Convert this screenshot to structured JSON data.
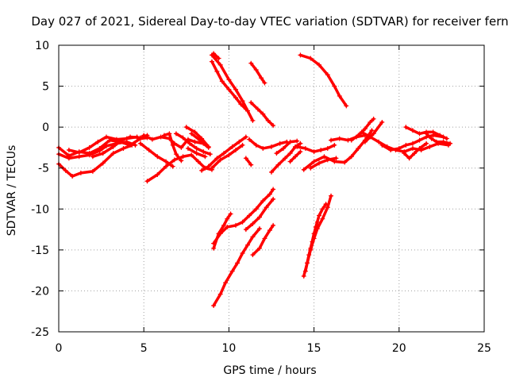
{
  "chart_data": {
    "type": "scatter",
    "title": "Day 027 of 2021, Sidereal Day-to-day VTEC variation (SDTVAR) for receiver fern",
    "xlabel": "GPS time / hours",
    "ylabel": "SDTVAR / TECUs",
    "xlim": [
      0,
      25
    ],
    "ylim": [
      -25,
      10
    ],
    "xticks": [
      0,
      5,
      10,
      15,
      20,
      25
    ],
    "yticks": [
      -25,
      -20,
      -15,
      -10,
      -5,
      0,
      5,
      10
    ],
    "grid": true,
    "marker": "plus",
    "color": "#ff0000",
    "tracks": [
      [
        [
          0.0,
          -2.5
        ],
        [
          0.6,
          -3.5
        ],
        [
          1.2,
          -3.0
        ],
        [
          1.8,
          -3.2
        ],
        [
          2.4,
          -2.6
        ],
        [
          3.0,
          -1.6
        ],
        [
          3.6,
          -1.8
        ],
        [
          4.2,
          -2.2
        ],
        [
          4.8,
          -1.4
        ],
        [
          5.2,
          -1.3
        ]
      ],
      [
        [
          0.0,
          -3.3
        ],
        [
          0.6,
          -3.8
        ],
        [
          1.2,
          -3.6
        ],
        [
          1.8,
          -3.4
        ],
        [
          2.4,
          -2.9
        ],
        [
          2.8,
          -2.3
        ],
        [
          3.4,
          -2.0
        ],
        [
          4.0,
          -1.8
        ],
        [
          4.5,
          -2.2
        ]
      ],
      [
        [
          0.0,
          -4.5
        ],
        [
          0.4,
          -5.3
        ],
        [
          0.8,
          -6.0
        ],
        [
          1.3,
          -5.6
        ],
        [
          2.0,
          -5.4
        ],
        [
          2.6,
          -4.4
        ],
        [
          3.2,
          -3.2
        ],
        [
          3.8,
          -2.6
        ],
        [
          4.3,
          -2.2
        ]
      ],
      [
        [
          2.0,
          -3.6
        ],
        [
          2.6,
          -3.2
        ],
        [
          3.2,
          -2.4
        ],
        [
          3.7,
          -1.6
        ],
        [
          4.2,
          -1.2
        ],
        [
          4.8,
          -1.3
        ],
        [
          5.2,
          -1.0
        ]
      ],
      [
        [
          0.6,
          -2.8
        ],
        [
          1.2,
          -3.1
        ],
        [
          1.8,
          -2.5
        ],
        [
          2.3,
          -1.8
        ],
        [
          2.8,
          -1.2
        ],
        [
          3.4,
          -1.5
        ],
        [
          4.0,
          -1.4
        ],
        [
          4.6,
          -1.2
        ]
      ],
      [
        [
          5.0,
          -1.0
        ],
        [
          5.5,
          -1.5
        ],
        [
          6.0,
          -1.2
        ],
        [
          6.5,
          -1.4
        ],
        [
          6.8,
          -2.0
        ],
        [
          7.2,
          -2.5
        ],
        [
          7.6,
          -1.5
        ],
        [
          8.0,
          -1.8
        ],
        [
          8.5,
          -2.0
        ],
        [
          8.8,
          -2.5
        ]
      ],
      [
        [
          4.8,
          -2.0
        ],
        [
          5.3,
          -2.8
        ],
        [
          5.8,
          -3.6
        ],
        [
          6.3,
          -4.2
        ],
        [
          6.7,
          -4.8
        ]
      ],
      [
        [
          6.2,
          -1.0
        ],
        [
          6.5,
          -0.8
        ],
        [
          6.7,
          -2.2
        ],
        [
          6.9,
          -3.3
        ],
        [
          7.2,
          -4.1
        ]
      ],
      [
        [
          5.2,
          -6.6
        ],
        [
          5.8,
          -5.8
        ],
        [
          6.3,
          -4.8
        ],
        [
          6.8,
          -4.0
        ],
        [
          7.3,
          -3.6
        ],
        [
          7.8,
          -3.4
        ],
        [
          8.2,
          -4.2
        ],
        [
          8.6,
          -5.0
        ],
        [
          9.0,
          -5.2
        ]
      ],
      [
        [
          6.9,
          -0.8
        ],
        [
          7.3,
          -1.3
        ],
        [
          7.7,
          -2.0
        ],
        [
          8.1,
          -2.6
        ],
        [
          8.5,
          -3.0
        ],
        [
          8.9,
          -3.3
        ]
      ],
      [
        [
          7.5,
          0.0
        ],
        [
          8.0,
          -0.6
        ],
        [
          8.4,
          -1.4
        ],
        [
          8.8,
          -2.4
        ]
      ],
      [
        [
          7.8,
          -0.8
        ],
        [
          8.3,
          -1.6
        ],
        [
          8.7,
          -2.2
        ]
      ],
      [
        [
          7.6,
          -2.6
        ],
        [
          8.1,
          -3.2
        ],
        [
          8.6,
          -3.6
        ]
      ],
      [
        [
          8.4,
          -5.3
        ],
        [
          8.8,
          -4.8
        ],
        [
          9.3,
          -3.8
        ],
        [
          9.7,
          -3.2
        ],
        [
          10.2,
          -2.4
        ],
        [
          10.6,
          -1.8
        ],
        [
          11.0,
          -1.2
        ]
      ],
      [
        [
          9.0,
          -5.0
        ],
        [
          9.5,
          -4.0
        ],
        [
          10.0,
          -3.4
        ],
        [
          10.4,
          -2.8
        ],
        [
          10.8,
          -2.2
        ]
      ],
      [
        [
          9.0,
          8.8
        ],
        [
          9.5,
          7.6
        ],
        [
          10.0,
          5.8
        ],
        [
          10.4,
          4.6
        ],
        [
          10.8,
          3.2
        ],
        [
          11.1,
          2.0
        ],
        [
          11.4,
          0.8
        ]
      ],
      [
        [
          9.0,
          8.0
        ],
        [
          9.3,
          6.8
        ],
        [
          9.6,
          5.6
        ],
        [
          10.0,
          4.6
        ],
        [
          10.4,
          3.6
        ],
        [
          10.7,
          2.8
        ],
        [
          11.0,
          2.2
        ]
      ],
      [
        [
          9.1,
          9.0
        ],
        [
          9.4,
          8.4
        ]
      ],
      [
        [
          11.3,
          3.0
        ],
        [
          11.7,
          2.2
        ],
        [
          12.0,
          1.6
        ],
        [
          12.3,
          0.8
        ],
        [
          12.6,
          0.2
        ]
      ],
      [
        [
          11.3,
          7.8
        ],
        [
          11.6,
          7.0
        ],
        [
          11.9,
          6.0
        ],
        [
          12.1,
          5.4
        ]
      ],
      [
        [
          11.2,
          -1.5
        ],
        [
          11.6,
          -2.2
        ],
        [
          12.0,
          -2.6
        ],
        [
          12.5,
          -2.4
        ],
        [
          13.0,
          -2.0
        ],
        [
          13.4,
          -1.8
        ]
      ],
      [
        [
          11.0,
          -3.8
        ],
        [
          11.3,
          -4.6
        ]
      ],
      [
        [
          12.5,
          -5.5
        ],
        [
          12.9,
          -4.6
        ],
        [
          13.3,
          -3.8
        ],
        [
          13.6,
          -3.2
        ],
        [
          13.9,
          -2.4
        ],
        [
          14.2,
          -2.0
        ]
      ],
      [
        [
          12.8,
          -3.2
        ],
        [
          13.2,
          -2.6
        ],
        [
          13.6,
          -1.8
        ],
        [
          14.0,
          -1.7
        ]
      ],
      [
        [
          13.6,
          -4.2
        ],
        [
          13.9,
          -3.6
        ],
        [
          14.2,
          -3.0
        ]
      ],
      [
        [
          14.0,
          -2.4
        ],
        [
          14.5,
          -2.6
        ],
        [
          15.0,
          -3.0
        ],
        [
          15.4,
          -2.8
        ],
        [
          15.8,
          -2.6
        ],
        [
          16.2,
          -2.2
        ]
      ],
      [
        [
          14.4,
          -5.2
        ],
        [
          15.0,
          -4.2
        ],
        [
          15.6,
          -3.6
        ],
        [
          16.2,
          -4.2
        ],
        [
          16.8,
          -4.3
        ],
        [
          17.2,
          -3.6
        ],
        [
          17.6,
          -2.6
        ],
        [
          18.0,
          -1.6
        ],
        [
          18.4,
          -0.4
        ]
      ],
      [
        [
          14.8,
          -5.0
        ],
        [
          15.3,
          -4.4
        ],
        [
          15.8,
          -4.0
        ],
        [
          16.3,
          -3.8
        ]
      ],
      [
        [
          16.0,
          -1.6
        ],
        [
          16.5,
          -1.4
        ],
        [
          17.0,
          -1.6
        ],
        [
          17.5,
          -1.2
        ],
        [
          18.0,
          -1.0
        ]
      ],
      [
        [
          17.2,
          -1.6
        ],
        [
          17.6,
          -1.0
        ],
        [
          18.0,
          -0.2
        ],
        [
          18.3,
          0.6
        ],
        [
          18.5,
          1.0
        ]
      ],
      [
        [
          18.0,
          -1.8
        ],
        [
          18.5,
          -0.8
        ],
        [
          19.0,
          0.6
        ]
      ],
      [
        [
          14.2,
          8.8
        ],
        [
          14.8,
          8.4
        ],
        [
          15.3,
          7.6
        ],
        [
          15.8,
          6.4
        ],
        [
          16.2,
          5.0
        ],
        [
          16.5,
          3.8
        ],
        [
          16.9,
          2.6
        ]
      ],
      [
        [
          17.8,
          -0.6
        ],
        [
          18.3,
          -1.2
        ],
        [
          18.8,
          -1.8
        ],
        [
          19.3,
          -2.4
        ],
        [
          19.8,
          -2.8
        ],
        [
          20.3,
          -3.0
        ],
        [
          20.8,
          -2.6
        ],
        [
          21.3,
          -2.8
        ],
        [
          21.8,
          -2.4
        ],
        [
          22.3,
          -2.0
        ],
        [
          22.9,
          -2.2
        ]
      ],
      [
        [
          19.0,
          -2.2
        ],
        [
          19.5,
          -2.8
        ],
        [
          20.0,
          -2.6
        ],
        [
          20.4,
          -2.2
        ],
        [
          20.8,
          -2.0
        ],
        [
          21.2,
          -1.6
        ],
        [
          21.6,
          -1.2
        ],
        [
          22.0,
          -1.0
        ],
        [
          22.6,
          -1.2
        ]
      ],
      [
        [
          20.3,
          -3.2
        ],
        [
          20.6,
          -3.8
        ],
        [
          20.9,
          -3.2
        ],
        [
          21.2,
          -2.6
        ],
        [
          21.6,
          -2.0
        ]
      ],
      [
        [
          20.4,
          0.0
        ],
        [
          20.8,
          -0.4
        ],
        [
          21.2,
          -0.8
        ],
        [
          21.6,
          -0.6
        ],
        [
          22.0,
          -0.6
        ],
        [
          22.4,
          -1.0
        ],
        [
          22.8,
          -1.4
        ]
      ],
      [
        [
          21.6,
          -0.8
        ],
        [
          21.9,
          -1.4
        ],
        [
          22.2,
          -1.8
        ],
        [
          22.6,
          -1.8
        ],
        [
          23.0,
          -2.0
        ]
      ],
      [
        [
          9.1,
          -14.8
        ],
        [
          9.4,
          -13.0
        ],
        [
          9.7,
          -12.0
        ],
        [
          9.9,
          -11.2
        ],
        [
          10.1,
          -10.6
        ]
      ],
      [
        [
          9.1,
          -14.2
        ],
        [
          9.5,
          -13.0
        ],
        [
          9.9,
          -12.2
        ],
        [
          10.4,
          -12.0
        ],
        [
          10.8,
          -11.6
        ],
        [
          11.2,
          -10.8
        ],
        [
          11.6,
          -10.0
        ],
        [
          12.0,
          -9.0
        ],
        [
          12.4,
          -8.2
        ],
        [
          12.6,
          -7.6
        ]
      ],
      [
        [
          11.0,
          -12.5
        ],
        [
          11.4,
          -11.8
        ],
        [
          11.8,
          -11.0
        ],
        [
          12.2,
          -9.8
        ],
        [
          12.6,
          -8.8
        ]
      ],
      [
        [
          9.1,
          -21.8
        ],
        [
          9.5,
          -20.4
        ],
        [
          9.8,
          -19.0
        ],
        [
          10.2,
          -17.6
        ],
        [
          10.5,
          -16.6
        ],
        [
          10.8,
          -15.4
        ],
        [
          11.1,
          -14.4
        ],
        [
          11.4,
          -13.4
        ],
        [
          11.8,
          -12.4
        ]
      ],
      [
        [
          11.4,
          -15.6
        ],
        [
          11.8,
          -14.8
        ],
        [
          12.1,
          -13.6
        ],
        [
          12.4,
          -12.6
        ],
        [
          12.6,
          -12.0
        ]
      ],
      [
        [
          14.4,
          -18.2
        ],
        [
          14.6,
          -16.6
        ],
        [
          14.8,
          -15.0
        ],
        [
          15.0,
          -13.6
        ],
        [
          15.2,
          -12.4
        ],
        [
          15.5,
          -11.2
        ],
        [
          15.8,
          -9.8
        ],
        [
          16.0,
          -8.4
        ]
      ],
      [
        [
          14.5,
          -17.6
        ],
        [
          14.7,
          -15.6
        ],
        [
          14.9,
          -14.0
        ],
        [
          15.1,
          -12.2
        ],
        [
          15.3,
          -10.8
        ],
        [
          15.5,
          -10.0
        ],
        [
          15.7,
          -9.4
        ]
      ],
      [
        [
          14.6,
          -16.6
        ],
        [
          14.8,
          -14.8
        ],
        [
          15.0,
          -13.0
        ],
        [
          15.2,
          -11.6
        ]
      ]
    ]
  }
}
